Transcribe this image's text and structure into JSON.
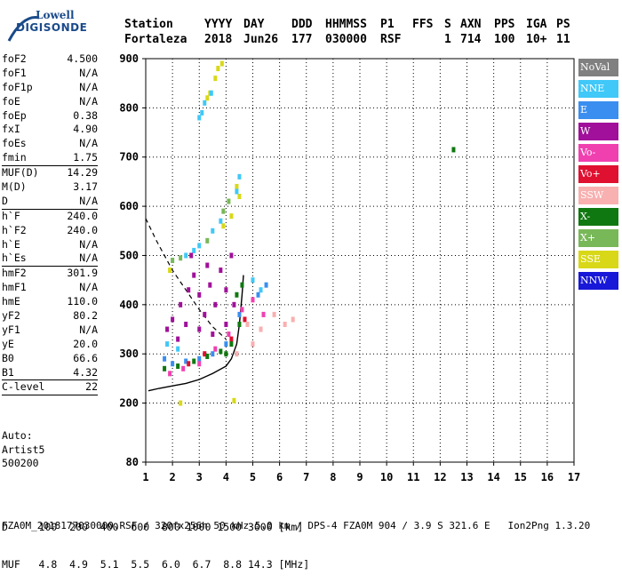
{
  "logo": {
    "line1": "Lowell",
    "line2": "DIGISONDE"
  },
  "header": {
    "row1": [
      "Station",
      "YYYY",
      "DAY",
      "DDD",
      "HHMMSS",
      "P1",
      "FFS",
      "S",
      "AXN",
      "PPS",
      "IGA",
      "PS"
    ],
    "row2": [
      "Fortaleza",
      "2018",
      "Jun26",
      "177",
      "030000",
      "RSF",
      "",
      "1",
      "714",
      "100",
      "10+",
      "11"
    ]
  },
  "params": [
    {
      "name": "foF2",
      "value": "4.500",
      "sep": false
    },
    {
      "name": "foF1",
      "value": "N/A",
      "sep": false
    },
    {
      "name": "foF1p",
      "value": "N/A",
      "sep": false
    },
    {
      "name": "foE",
      "value": "N/A",
      "sep": false
    },
    {
      "name": "foEp",
      "value": "0.38",
      "sep": false
    },
    {
      "name": "fxI",
      "value": "4.90",
      "sep": false
    },
    {
      "name": "foEs",
      "value": "N/A",
      "sep": false
    },
    {
      "name": "fmin",
      "value": "1.75",
      "sep": true
    },
    {
      "name": "MUF(D)",
      "value": "14.29",
      "sep": false
    },
    {
      "name": "M(D)",
      "value": "3.17",
      "sep": false
    },
    {
      "name": "D",
      "value": "N/A",
      "sep": true
    },
    {
      "name": "h`F",
      "value": "240.0",
      "sep": false
    },
    {
      "name": "h`F2",
      "value": "240.0",
      "sep": false
    },
    {
      "name": "h`E",
      "value": "N/A",
      "sep": false
    },
    {
      "name": "h`Es",
      "value": "N/A",
      "sep": true
    },
    {
      "name": "hmF2",
      "value": "301.9",
      "sep": false
    },
    {
      "name": "hmF1",
      "value": "N/A",
      "sep": false
    },
    {
      "name": "hmE",
      "value": "110.0",
      "sep": false
    },
    {
      "name": "yF2",
      "value": "80.2",
      "sep": false
    },
    {
      "name": "yF1",
      "value": "N/A",
      "sep": false
    },
    {
      "name": "yE",
      "value": "20.0",
      "sep": false
    },
    {
      "name": "B0",
      "value": "66.6",
      "sep": false
    },
    {
      "name": "B1",
      "value": "4.32",
      "sep": true
    },
    {
      "name": "C-level",
      "value": "22",
      "sep": true
    }
  ],
  "extra": {
    "auto": "Auto:",
    "artist": "Artist5",
    "code": "500200"
  },
  "legend": [
    {
      "label": "NoVal",
      "color": "#808080"
    },
    {
      "label": "NNE",
      "color": "#40c8f8"
    },
    {
      "label": "E",
      "color": "#3a8ef0"
    },
    {
      "label": "W",
      "color": "#a0109a"
    },
    {
      "label": "Vo-",
      "color": "#f040b0"
    },
    {
      "label": "Vo+",
      "color": "#e01030"
    },
    {
      "label": "SSW",
      "color": "#f8b0b0"
    },
    {
      "label": "X-",
      "color": "#107810"
    },
    {
      "label": "X+",
      "color": "#78b858"
    },
    {
      "label": "SSE",
      "color": "#d8d818"
    },
    {
      "label": "NNW",
      "color": "#1818d8"
    }
  ],
  "dscale": {
    "line1": "D     100  200  400  600  800 1000 1500 3000 [km]",
    "line2": "MUF   4.8  4.9  5.1  5.5  6.0  6.7  8.8 14.3 [MHz]"
  },
  "footer": "FZA0M_2018177030000.RSF / 320fx256h 50 kHz 5.0 km / DPS-4 FZA0M 904 / 3.9 S 321.6 E   Ion2Png 1.3.20",
  "chart_data": {
    "type": "scatter",
    "title": "",
    "xlabel": "",
    "ylabel": "",
    "xlim": [
      1,
      17
    ],
    "ylim": [
      80,
      900
    ],
    "x_ticks": [
      1,
      2,
      3,
      4,
      5,
      6,
      7,
      8,
      9,
      10,
      11,
      12,
      13,
      14,
      15,
      16,
      17
    ],
    "y_ticks": [
      80,
      200,
      300,
      400,
      500,
      600,
      700,
      800,
      900
    ],
    "grid": true,
    "series": [
      {
        "name": "SSE",
        "color": "#d8d818",
        "points": [
          [
            3.7,
            880
          ],
          [
            3.85,
            890
          ],
          [
            3.6,
            860
          ],
          [
            3.4,
            830
          ],
          [
            3.3,
            820
          ],
          [
            4.4,
            640
          ],
          [
            4.5,
            620
          ],
          [
            3.9,
            560
          ],
          [
            4.2,
            580
          ],
          [
            2.3,
            200
          ],
          [
            4.3,
            205
          ],
          [
            1.9,
            470
          ]
        ]
      },
      {
        "name": "NNE",
        "color": "#40c8f8",
        "points": [
          [
            3.2,
            810
          ],
          [
            3.45,
            830
          ],
          [
            3.0,
            780
          ],
          [
            3.1,
            790
          ],
          [
            4.5,
            660
          ],
          [
            4.4,
            630
          ],
          [
            3.8,
            570
          ],
          [
            3.5,
            550
          ],
          [
            3.0,
            520
          ],
          [
            2.8,
            510
          ],
          [
            2.5,
            500
          ],
          [
            5.0,
            450
          ],
          [
            5.3,
            430
          ],
          [
            1.8,
            320
          ],
          [
            2.2,
            310
          ]
        ]
      },
      {
        "name": "E",
        "color": "#3a8ef0",
        "points": [
          [
            1.7,
            290
          ],
          [
            2.0,
            280
          ],
          [
            2.5,
            285
          ],
          [
            3.0,
            290
          ],
          [
            3.5,
            300
          ],
          [
            4.0,
            320
          ],
          [
            4.5,
            380
          ],
          [
            5.2,
            420
          ],
          [
            5.5,
            440
          ]
        ]
      },
      {
        "name": "W",
        "color": "#a0109a",
        "points": [
          [
            1.8,
            350
          ],
          [
            2.0,
            370
          ],
          [
            2.3,
            400
          ],
          [
            2.6,
            430
          ],
          [
            2.8,
            460
          ],
          [
            3.0,
            420
          ],
          [
            3.2,
            380
          ],
          [
            3.4,
            440
          ],
          [
            3.6,
            400
          ],
          [
            3.8,
            470
          ],
          [
            4.0,
            430
          ],
          [
            4.2,
            500
          ],
          [
            2.2,
            330
          ],
          [
            2.5,
            360
          ],
          [
            3.0,
            350
          ],
          [
            3.5,
            340
          ],
          [
            4.0,
            360
          ],
          [
            4.3,
            400
          ],
          [
            2.7,
            500
          ],
          [
            3.3,
            480
          ]
        ]
      },
      {
        "name": "Vo-",
        "color": "#f040b0",
        "points": [
          [
            1.9,
            260
          ],
          [
            2.4,
            270
          ],
          [
            3.0,
            280
          ],
          [
            3.6,
            310
          ],
          [
            4.1,
            340
          ],
          [
            4.6,
            390
          ],
          [
            5.0,
            410
          ],
          [
            5.4,
            380
          ]
        ]
      },
      {
        "name": "Vo+",
        "color": "#e01030",
        "points": [
          [
            2.6,
            280
          ],
          [
            3.2,
            300
          ],
          [
            4.2,
            330
          ],
          [
            4.7,
            370
          ]
        ]
      },
      {
        "name": "SSW",
        "color": "#f8b0b0",
        "points": [
          [
            4.8,
            360
          ],
          [
            5.3,
            350
          ],
          [
            5.8,
            380
          ],
          [
            6.2,
            360
          ],
          [
            6.5,
            370
          ],
          [
            5.0,
            320
          ],
          [
            4.4,
            300
          ]
        ]
      },
      {
        "name": "X-",
        "color": "#107810",
        "points": [
          [
            1.7,
            270
          ],
          [
            2.2,
            275
          ],
          [
            2.8,
            285
          ],
          [
            3.3,
            295
          ],
          [
            3.8,
            305
          ],
          [
            4.2,
            320
          ],
          [
            4.5,
            360
          ],
          [
            4.6,
            440
          ],
          [
            4.4,
            420
          ],
          [
            4.0,
            300
          ],
          [
            12.5,
            715
          ]
        ]
      },
      {
        "name": "X+",
        "color": "#78b858",
        "points": [
          [
            2.0,
            490
          ],
          [
            2.3,
            495
          ],
          [
            3.3,
            530
          ],
          [
            3.9,
            590
          ],
          [
            4.1,
            610
          ]
        ]
      }
    ],
    "trace_solid": [
      [
        1.1,
        225
      ],
      [
        1.5,
        230
      ],
      [
        2.0,
        235
      ],
      [
        2.5,
        240
      ],
      [
        3.0,
        248
      ],
      [
        3.5,
        260
      ],
      [
        4.0,
        275
      ],
      [
        4.2,
        290
      ],
      [
        4.4,
        320
      ],
      [
        4.5,
        360
      ],
      [
        4.6,
        420
      ],
      [
        4.65,
        460
      ]
    ],
    "trace_dashed": [
      [
        1.0,
        575
      ],
      [
        1.4,
        530
      ],
      [
        2.0,
        470
      ],
      [
        2.5,
        430
      ],
      [
        3.0,
        390
      ],
      [
        3.5,
        355
      ],
      [
        4.0,
        330
      ]
    ]
  }
}
